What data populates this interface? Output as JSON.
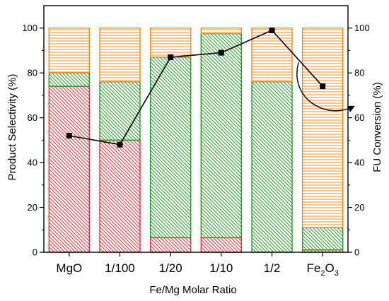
{
  "chart_data": {
    "type": "bar",
    "stacked": true,
    "categories": [
      "MgO",
      "1/100",
      "1/20",
      "1/10",
      "1/2",
      "Fe2O3"
    ],
    "category_display": [
      {
        "main": "MgO",
        "sub": "",
        "tail": ""
      },
      {
        "main": "1/100",
        "sub": "",
        "tail": ""
      },
      {
        "main": "1/20",
        "sub": "",
        "tail": ""
      },
      {
        "main": "1/10",
        "sub": "",
        "tail": ""
      },
      {
        "main": "1/2",
        "sub": "",
        "tail": ""
      },
      {
        "main": "Fe",
        "sub": "2",
        "tail": "O",
        "sub2": "3"
      }
    ],
    "series": [
      {
        "color": "#e8333a",
        "pattern": "diagonal-down",
        "values": [
          74,
          50,
          6.5,
          6.5,
          0,
          1
        ]
      },
      {
        "color": "#2a9a2a",
        "pattern": "diagonal-down",
        "values": [
          6,
          26,
          80.5,
          91,
          76,
          10
        ]
      },
      {
        "color": "#f08c1e",
        "pattern": "horizontal",
        "values": [
          20,
          24,
          13,
          2.5,
          24,
          89
        ]
      }
    ],
    "line_series": {
      "axis": "right",
      "marker": "square",
      "color": "#000000",
      "values": [
        52,
        48,
        87,
        89,
        99,
        74
      ]
    },
    "xlabel": "Fe/Mg Molar Ratio",
    "ylabel": "Product Selectivity (%)",
    "ylabel_right": "FU Conversion (%)",
    "ylim": [
      0,
      110
    ],
    "ylim_right": [
      0,
      110
    ],
    "yticks": [
      0,
      20,
      40,
      60,
      80,
      100
    ],
    "yticks_right": [
      0,
      20,
      40,
      60,
      80,
      100
    ],
    "annotation": {
      "type": "curved-arrow",
      "points_to": "right-axis",
      "near_category": "Fe2O3"
    },
    "grid": false,
    "legend": "none"
  }
}
